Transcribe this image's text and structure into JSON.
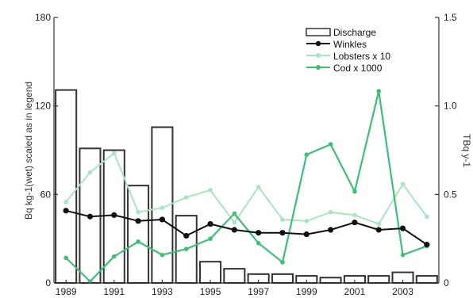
{
  "chart_data": {
    "type": "bar",
    "title": "",
    "xlabel": "",
    "ylabel": "Bq kg-1(wet) scaled as in legend",
    "y2label": "TBq y-1",
    "xlim": [
      1988.5,
      2004.5
    ],
    "ylim": [
      0,
      180
    ],
    "y2lim": [
      0,
      1.5
    ],
    "x_ticks": [
      "1989",
      "1991",
      "1993",
      "1995",
      "1997",
      "1999",
      "2001",
      "2003"
    ],
    "y_ticks": [
      "0",
      "60",
      "120",
      "180"
    ],
    "y2_ticks": [
      "0",
      "0.5",
      "1.0",
      "1.5"
    ],
    "grid": false,
    "legend_position": "top-right",
    "colors": {
      "discharge": "#333333",
      "winkles": "#111111",
      "lobsters": "#a8e6c0",
      "cod": "#3dbf76"
    },
    "series": [
      {
        "name": "Discharge",
        "type": "bar",
        "axis": "right",
        "x": [
          1989,
          1990,
          1991,
          1992,
          1993,
          1994,
          1995,
          1996,
          1997,
          1998,
          1999,
          2000,
          2001,
          2002,
          2003,
          2004
        ],
        "values": [
          1.09,
          0.76,
          0.75,
          0.55,
          0.88,
          0.38,
          0.12,
          0.08,
          0.05,
          0.05,
          0.04,
          0.03,
          0.04,
          0.04,
          0.06,
          0.04
        ]
      },
      {
        "name": "Winkles",
        "type": "line",
        "axis": "left",
        "x": [
          1989,
          1990,
          1991,
          1992,
          1993,
          1994,
          1995,
          1996,
          1997,
          1998,
          1999,
          2000,
          2001,
          2002,
          2003,
          2004
        ],
        "values": [
          49,
          45,
          46,
          42,
          43,
          32,
          40,
          36,
          34,
          34,
          33,
          36,
          41,
          36,
          37,
          26
        ]
      },
      {
        "name": "Lobsters  x 10",
        "type": "line",
        "axis": "left",
        "x": [
          1989,
          1990,
          1991,
          1992,
          1993,
          1994,
          1995,
          1996,
          1997,
          1998,
          1999,
          2000,
          2001,
          2002,
          2003,
          2004
        ],
        "values": [
          55,
          75,
          88,
          48,
          51,
          58,
          63,
          41,
          65,
          43,
          42,
          48,
          46,
          40,
          67,
          45
        ]
      },
      {
        "name": "Cod x 1000",
        "type": "line",
        "axis": "left",
        "x": [
          1989,
          1990,
          1991,
          1992,
          1993,
          1994,
          1995,
          1996,
          1997,
          1998,
          1999,
          2000,
          2001,
          2002,
          2003,
          2004
        ],
        "values": [
          17,
          1,
          18,
          28,
          19,
          23,
          30,
          47,
          27,
          14,
          87,
          94,
          62,
          130,
          19,
          25
        ]
      }
    ]
  }
}
